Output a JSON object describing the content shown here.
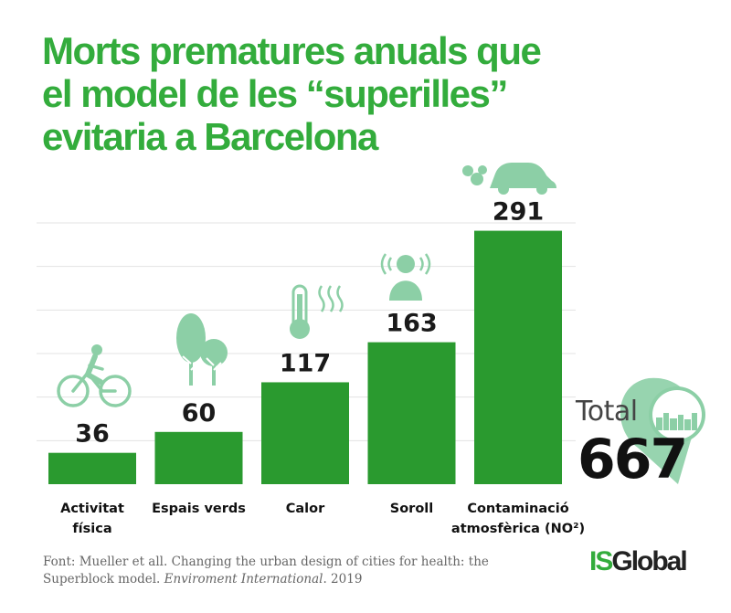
{
  "title_lines": [
    "Morts prematures anuals que",
    "el model de les “superilles”",
    "evitaria a Barcelona"
  ],
  "colors": {
    "bar": "#2a9a2f",
    "title": "#33ac3c",
    "icon": "#8ccfa6",
    "grid": "#e3e3e3"
  },
  "chart_data": {
    "type": "bar",
    "title": "Morts prematures anuals que el model de les “superilles” evitaria a Barcelona",
    "categories": [
      "Activitat física",
      "Espais verds",
      "Calor",
      "Soroll",
      "Contaminació atmosfèrica (NO²)"
    ],
    "category_lines": [
      [
        "Activitat",
        "física"
      ],
      [
        "Espais verds"
      ],
      [
        "Calor"
      ],
      [
        "Soroll"
      ],
      [
        "Contaminació",
        "atmosfèrica (NO²)"
      ]
    ],
    "values": [
      36,
      60,
      117,
      163,
      291
    ],
    "icons": [
      "cyclist-icon",
      "trees-icon",
      "thermometer-icon",
      "person-sound-icon",
      "car-exhaust-icon"
    ],
    "ylim": [
      0,
      300
    ],
    "grid": true,
    "xlabel": "",
    "ylabel": ""
  },
  "total": {
    "label": "Total",
    "value": "667",
    "icon": "location-pin-city-icon"
  },
  "source": {
    "prefix": "Font: Mueller et all. Changing the urban design of cities for health: the Superblock model. ",
    "journal": "Enviroment International",
    "suffix": ". 2019"
  },
  "logo": {
    "part1": "IS",
    "part2": "Global"
  }
}
